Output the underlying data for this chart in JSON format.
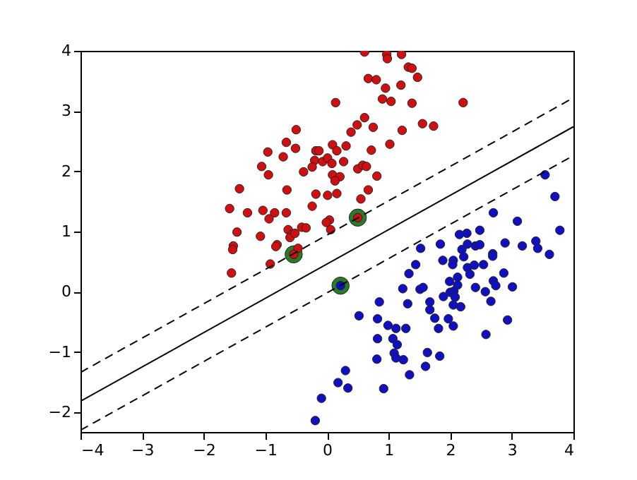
{
  "chart_data": {
    "type": "scatter",
    "xlim": [
      -4,
      4
    ],
    "ylim": [
      -2.33,
      4
    ],
    "xticks": [
      -4,
      -3,
      -2,
      -1,
      0,
      1,
      2,
      3,
      4
    ],
    "yticks": [
      -2,
      -1,
      0,
      1,
      2,
      3,
      4
    ],
    "grid": false,
    "marker": "circle",
    "series": [
      {
        "color": "#2a7a2a",
        "x": [
          -0.54,
          0.5,
          0.22
        ],
        "values": [
          0.62,
          1.23,
          0.1
        ]
      },
      {
        "color": "#d01010",
        "x": [
          0.14,
          -0.5,
          -0.66,
          -0.96,
          -0.51,
          -0.71,
          -1.06,
          -0.95,
          -0.38,
          -0.18,
          -0.13,
          -0.2,
          -0.07,
          0.01,
          0.08,
          -0.24,
          0.09,
          0.16,
          0.31,
          0.27,
          0.39,
          0.09,
          0.21,
          0.13,
          0.16,
          0.01,
          -0.18,
          -0.65,
          -1.42,
          -1.58,
          -1.29,
          -1.04,
          -0.85,
          -0.66,
          -0.94,
          -0.24,
          0.04,
          -0.01,
          -0.63,
          -0.57,
          -0.6,
          -0.52,
          -0.41,
          -0.34,
          0.06,
          -1.46,
          -1.08,
          -0.81,
          -0.83,
          -1.52,
          -1.53,
          -0.47,
          -0.92,
          -1.55,
          -0.54,
          0.61,
          0.97,
          0.98,
          1.21,
          0.67,
          0.8,
          1.32,
          1.38,
          1.47,
          0.95,
          1.2,
          0.9,
          1.04,
          1.38,
          2.21,
          0.61,
          0.49,
          0.75,
          1.22,
          1.55,
          1.73,
          0.72,
          1.02,
          0.5,
          0.58,
          0.64,
          0.81,
          0.67,
          0.55,
          0.5
        ],
        "values": [
          3.14,
          2.69,
          2.48,
          2.32,
          2.38,
          2.24,
          2.08,
          1.94,
          1.99,
          2.34,
          2.34,
          2.18,
          2.16,
          2.22,
          2.13,
          2.07,
          2.44,
          2.34,
          2.42,
          2.16,
          2.65,
          1.94,
          1.91,
          1.84,
          1.63,
          1.6,
          1.62,
          1.69,
          1.71,
          1.38,
          1.31,
          1.35,
          1.31,
          1.31,
          1.21,
          1.42,
          1.19,
          1.15,
          1.03,
          0.95,
          0.9,
          0.97,
          1.07,
          1.06,
          1.03,
          0.99,
          0.92,
          0.78,
          0.75,
          0.76,
          0.7,
          0.72,
          0.46,
          0.31,
          0.62,
          3.98,
          3.94,
          3.87,
          3.94,
          3.54,
          3.52,
          3.73,
          3.71,
          3.56,
          3.38,
          3.43,
          3.2,
          3.16,
          3.13,
          3.14,
          2.89,
          2.77,
          2.73,
          2.68,
          2.79,
          2.75,
          2.35,
          2.45,
          2.04,
          2.1,
          2.08,
          1.92,
          1.69,
          1.54,
          1.23
        ]
      },
      {
        "color": "#1010c0",
        "x": [
          3.54,
          3.7,
          3.78,
          2.7,
          3.09,
          2.48,
          2.27,
          2.15,
          2.41,
          2.48,
          2.28,
          2.19,
          2.22,
          1.84,
          1.52,
          1.88,
          2.05,
          2.04,
          2.28,
          2.39,
          2.54,
          2.69,
          2.69,
          2.89,
          3.17,
          3.39,
          3.42,
          3.61,
          1.33,
          1.44,
          1.51,
          1.56,
          1.23,
          1.31,
          0.85,
          0.52,
          0.82,
          0.99,
          1.12,
          1.28,
          0.82,
          1.07,
          1.14,
          1.09,
          1.12,
          1.24,
          0.81,
          1.34,
          1.6,
          1.63,
          1.83,
          1.81,
          1.75,
          1.67,
          1.67,
          1.89,
          1.99,
          2.0,
          2.06,
          2.12,
          2.12,
          2.08,
          2.05,
          2.17,
          1.97,
          2.05,
          2.41,
          2.32,
          2.57,
          2.7,
          2.74,
          2.87,
          3.01,
          2.66,
          2.93,
          2.58,
          0.3,
          0.18,
          0.34,
          0.92,
          -0.09,
          -0.19,
          0.22
        ],
        "values": [
          1.94,
          1.58,
          1.02,
          1.31,
          1.17,
          1.02,
          0.97,
          0.95,
          0.76,
          0.78,
          0.79,
          0.7,
          0.58,
          0.79,
          0.72,
          0.52,
          0.52,
          0.45,
          0.4,
          0.44,
          0.45,
          0.63,
          0.59,
          0.81,
          0.76,
          0.84,
          0.72,
          0.62,
          0.3,
          0.45,
          0.04,
          0.07,
          0.05,
          -0.2,
          -0.17,
          -0.4,
          -0.45,
          -0.56,
          -0.61,
          -0.61,
          -0.78,
          -0.78,
          -0.88,
          -1.02,
          -1.1,
          -1.13,
          -1.12,
          -1.38,
          -1.24,
          -1.01,
          -1.07,
          -0.61,
          -0.44,
          -0.3,
          -0.17,
          -0.08,
          0.17,
          -0.01,
          0.01,
          0.24,
          0.11,
          -0.09,
          -0.22,
          -0.25,
          -0.45,
          -0.57,
          0.07,
          0.29,
          0.0,
          0.18,
          0.1,
          0.31,
          0.08,
          -0.16,
          -0.47,
          -0.71,
          -1.31,
          -1.51,
          -1.6,
          -1.61,
          -1.77,
          -2.14,
          0.1
        ]
      },
      {
        "type": "line",
        "color": "#000000",
        "line_style": "solid",
        "marker": "none",
        "x": [
          -4,
          4
        ],
        "values": [
          -1.82,
          2.74
        ]
      },
      {
        "type": "line",
        "color": "#000000",
        "line_style": "dashed",
        "marker": "none",
        "x": [
          -4,
          4
        ],
        "values": [
          -1.34,
          3.22
        ]
      },
      {
        "type": "line",
        "color": "#000000",
        "line_style": "dashed",
        "marker": "none",
        "x": [
          -4,
          4
        ],
        "values": [
          -2.3,
          2.26
        ]
      }
    ]
  }
}
